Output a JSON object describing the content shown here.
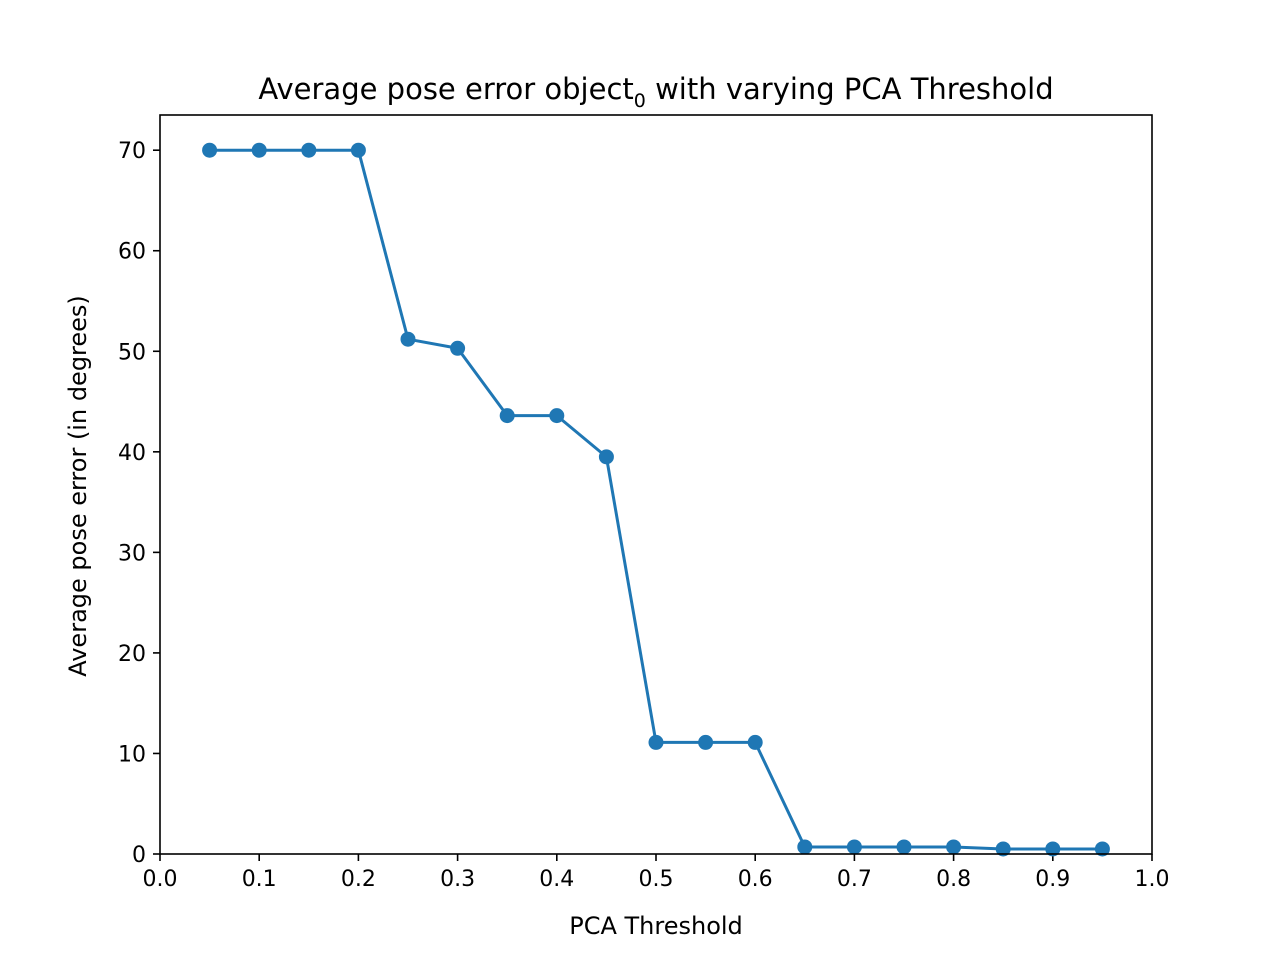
{
  "chart_data": {
    "type": "line",
    "title": {
      "before": "Average pose error object",
      "subscript": "0",
      "after": " with varying PCA Threshold"
    },
    "xlabel": "PCA Threshold",
    "ylabel": "Average pose error (in degrees)",
    "xlim": [
      0.0,
      1.0
    ],
    "ylim": [
      0,
      73.5
    ],
    "xticks": [
      "0.0",
      "0.1",
      "0.2",
      "0.3",
      "0.4",
      "0.5",
      "0.6",
      "0.7",
      "0.8",
      "0.9",
      "1.0"
    ],
    "yticks": [
      "0",
      "10",
      "20",
      "30",
      "40",
      "50",
      "60",
      "70"
    ],
    "grid": false,
    "legend": "none",
    "series": [
      {
        "color": "#1f77b4",
        "marker": "circle",
        "x": [
          0.05,
          0.1,
          0.15,
          0.2,
          0.25,
          0.3,
          0.35,
          0.4,
          0.45,
          0.5,
          0.55,
          0.6,
          0.65,
          0.7,
          0.75,
          0.8,
          0.85,
          0.9,
          0.95
        ],
        "y": [
          70.0,
          70.0,
          70.0,
          70.0,
          51.2,
          50.3,
          43.6,
          43.6,
          39.5,
          11.1,
          11.1,
          11.1,
          0.7,
          0.7,
          0.7,
          0.7,
          0.5,
          0.5,
          0.5
        ]
      }
    ]
  }
}
